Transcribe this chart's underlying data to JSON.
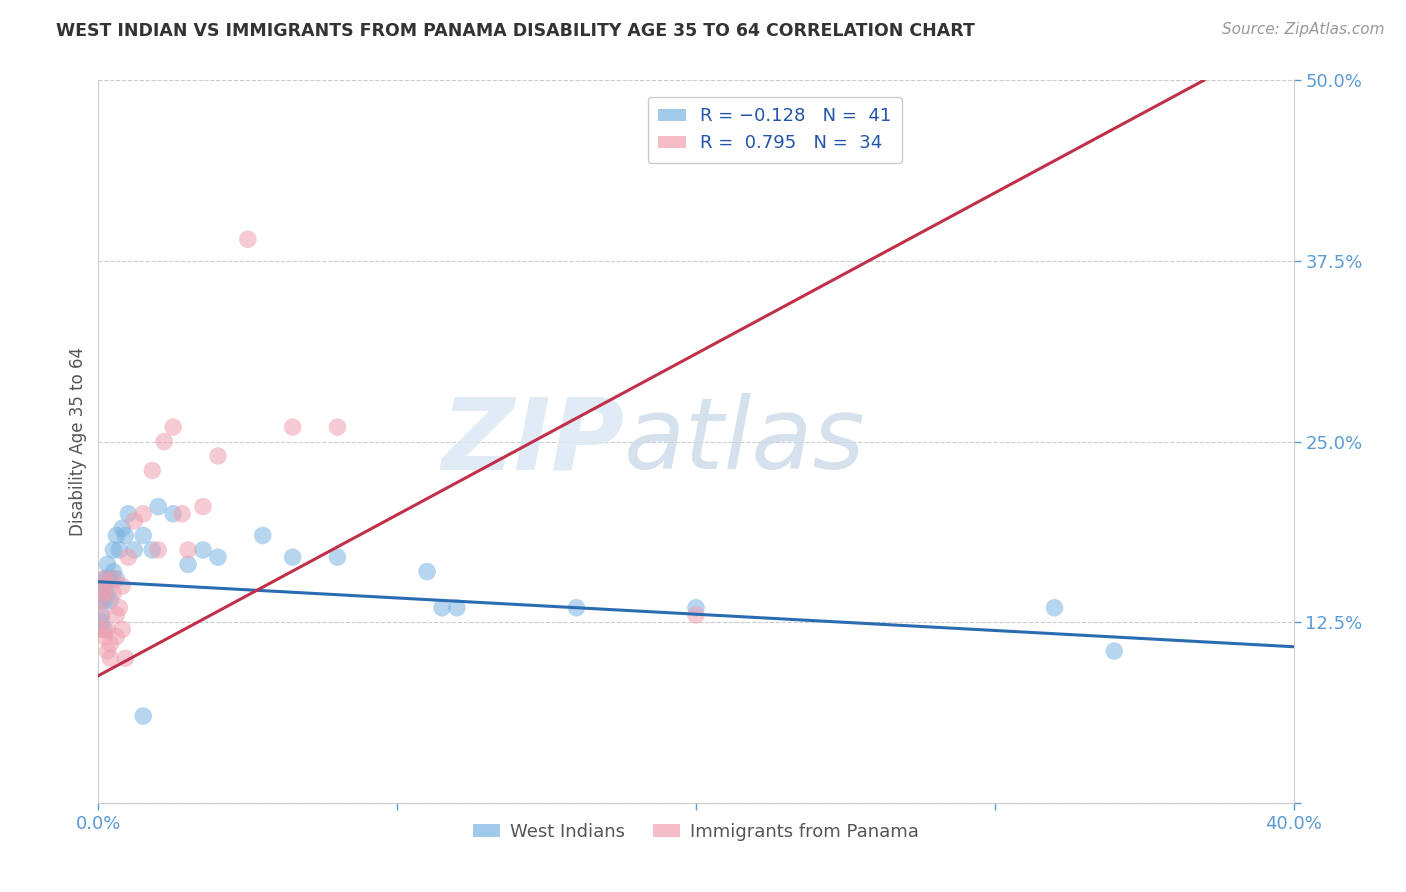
{
  "title": "WEST INDIAN VS IMMIGRANTS FROM PANAMA DISABILITY AGE 35 TO 64 CORRELATION CHART",
  "source": "Source: ZipAtlas.com",
  "ylabel": "Disability Age 35 to 64",
  "xlim": [
    0.0,
    0.4
  ],
  "ylim": [
    0.0,
    0.5
  ],
  "xticks": [
    0.0,
    0.1,
    0.2,
    0.3,
    0.4
  ],
  "yticks": [
    0.0,
    0.125,
    0.25,
    0.375,
    0.5
  ],
  "xticklabels": [
    "0.0%",
    "",
    "",
    "",
    "40.0%"
  ],
  "yticklabels": [
    "",
    "12.5%",
    "25.0%",
    "37.5%",
    "50.0%"
  ],
  "color_blue": "#7ab3e0",
  "color_pink": "#f0a0b0",
  "line_blue": "#2b6cb0",
  "line_pink": "#c0304a",
  "background_color": "#ffffff",
  "watermark_zip": "ZIP",
  "watermark_atlas": "atlas",
  "blue_line_x": [
    0.0,
    0.4
  ],
  "blue_line_y": [
    0.153,
    0.108
  ],
  "pink_line_x": [
    0.0,
    0.37
  ],
  "pink_line_y": [
    0.088,
    0.5
  ],
  "west_indians_x": [
    0.001,
    0.001,
    0.001,
    0.001,
    0.001,
    0.002,
    0.002,
    0.002,
    0.002,
    0.003,
    0.003,
    0.003,
    0.004,
    0.004,
    0.005,
    0.005,
    0.006,
    0.006,
    0.007,
    0.008,
    0.009,
    0.01,
    0.012,
    0.015,
    0.018,
    0.02,
    0.025,
    0.03,
    0.035,
    0.04,
    0.055,
    0.065,
    0.08,
    0.11,
    0.115,
    0.12,
    0.16,
    0.2,
    0.32,
    0.34,
    0.015
  ],
  "west_indians_y": [
    0.15,
    0.145,
    0.14,
    0.13,
    0.125,
    0.155,
    0.148,
    0.14,
    0.12,
    0.165,
    0.155,
    0.145,
    0.155,
    0.14,
    0.175,
    0.16,
    0.185,
    0.155,
    0.175,
    0.19,
    0.185,
    0.2,
    0.175,
    0.185,
    0.175,
    0.205,
    0.2,
    0.165,
    0.175,
    0.17,
    0.185,
    0.17,
    0.17,
    0.16,
    0.135,
    0.135,
    0.135,
    0.135,
    0.135,
    0.105,
    0.06
  ],
  "panama_x": [
    0.001,
    0.001,
    0.001,
    0.001,
    0.002,
    0.002,
    0.002,
    0.003,
    0.003,
    0.004,
    0.004,
    0.005,
    0.005,
    0.006,
    0.006,
    0.007,
    0.008,
    0.008,
    0.009,
    0.01,
    0.012,
    0.015,
    0.018,
    0.02,
    0.022,
    0.025,
    0.028,
    0.03,
    0.035,
    0.04,
    0.05,
    0.065,
    0.08,
    0.2
  ],
  "panama_y": [
    0.15,
    0.14,
    0.13,
    0.12,
    0.155,
    0.145,
    0.115,
    0.12,
    0.105,
    0.11,
    0.1,
    0.155,
    0.145,
    0.13,
    0.115,
    0.135,
    0.15,
    0.12,
    0.1,
    0.17,
    0.195,
    0.2,
    0.23,
    0.175,
    0.25,
    0.26,
    0.2,
    0.175,
    0.205,
    0.24,
    0.39,
    0.26,
    0.26,
    0.13
  ]
}
